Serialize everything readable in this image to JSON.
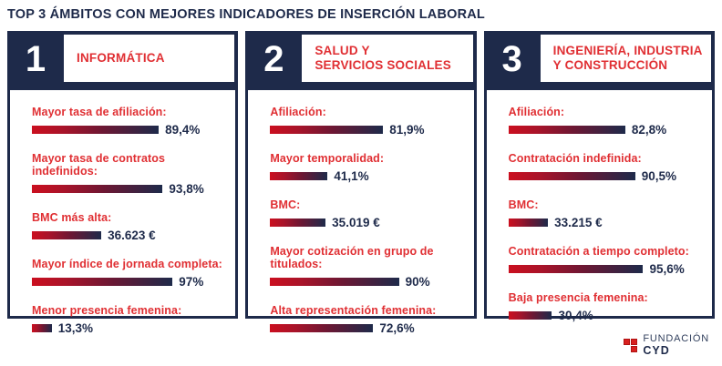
{
  "title": "TOP 3 ÁMBITOS CON MEJORES INDICADORES DE INSERCIÓN LABORAL",
  "colors": {
    "navy": "#1e2a4a",
    "red_label": "#e02f33",
    "bar_gradient_start": "#cb0f1f",
    "bar_gradient_end": "#1e2a4a",
    "logo_red": "#d8201f",
    "background": "#ffffff"
  },
  "logo": {
    "line1": "FUNDACIÓN",
    "line2": "CYD"
  },
  "chart_data": {
    "type": "bar",
    "orientation": "horizontal",
    "title": "TOP 3 ÁMBITOS CON MEJORES INDICADORES DE INSERCIÓN LABORAL",
    "legend": "none",
    "grid": false,
    "groups": [
      {
        "rank": "1",
        "category": "INFORMÁTICA",
        "indicators": [
          {
            "label": "Mayor tasa de afiliación:",
            "display": "89,4%",
            "value": 89.4,
            "unit": "%",
            "bar_pct": 64
          },
          {
            "label": "Mayor tasa de contratos indefinidos:",
            "display": "93,8%",
            "value": 93.8,
            "unit": "%",
            "bar_pct": 66
          },
          {
            "label": "BMC más alta:",
            "display": "36.623 €",
            "value": 36623,
            "unit": "€",
            "bar_pct": 35
          },
          {
            "label": "Mayor índice de jornada completa:",
            "display": "97%",
            "value": 97,
            "unit": "%",
            "bar_pct": 71
          },
          {
            "label": "Menor presencia femenina:",
            "display": "13,3%",
            "value": 13.3,
            "unit": "%",
            "bar_pct": 10
          }
        ]
      },
      {
        "rank": "2",
        "category": "SALUD Y\nSERVICIOS SOCIALES",
        "indicators": [
          {
            "label": "Afiliación:",
            "display": "81,9%",
            "value": 81.9,
            "unit": "%",
            "bar_pct": 57
          },
          {
            "label": "Mayor temporalidad:",
            "display": "41,1%",
            "value": 41.1,
            "unit": "%",
            "bar_pct": 29
          },
          {
            "label": "BMC:",
            "display": "35.019 €",
            "value": 35019,
            "unit": "€",
            "bar_pct": 28
          },
          {
            "label": "Mayor cotización en grupo de titulados:",
            "display": "90%",
            "value": 90,
            "unit": "%",
            "bar_pct": 65
          },
          {
            "label": "Alta representación femenina:",
            "display": "72,6%",
            "value": 72.6,
            "unit": "%",
            "bar_pct": 52
          }
        ]
      },
      {
        "rank": "3",
        "category": "INGENIERÍA, INDUSTRIA\nY CONSTRUCCIÓN",
        "indicators": [
          {
            "label": "Afiliación:",
            "display": "82,8%",
            "value": 82.8,
            "unit": "%",
            "bar_pct": 59
          },
          {
            "label": "Contratación indefinida:",
            "display": "90,5%",
            "value": 90.5,
            "unit": "%",
            "bar_pct": 64
          },
          {
            "label": "BMC:",
            "display": "33.215 €",
            "value": 33215,
            "unit": "€",
            "bar_pct": 20
          },
          {
            "label": "Contratación a tiempo completo:",
            "display": "95,6%",
            "value": 95.6,
            "unit": "%",
            "bar_pct": 68
          },
          {
            "label": "Baja presencia femenina:",
            "display": "30,4%",
            "value": 30.4,
            "unit": "%",
            "bar_pct": 22
          }
        ]
      }
    ]
  }
}
